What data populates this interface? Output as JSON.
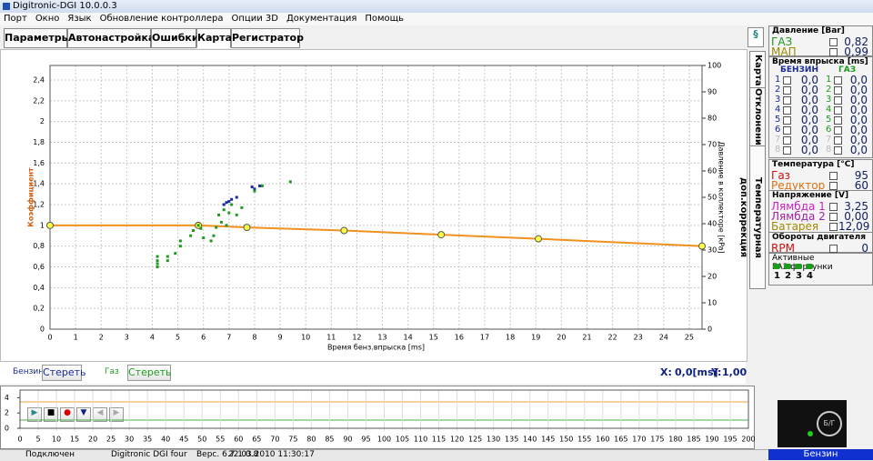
{
  "window": {
    "title": "Digitronic-DGI  10.0.0.3"
  },
  "menu": [
    "Порт",
    "Окно",
    "Язык",
    "Обновление контроллера",
    "Опции 3D",
    "Документация",
    "Помощь"
  ],
  "tabs": [
    "Параметры",
    "Автонастройка",
    "Ошибки",
    "Карта",
    "Регистратор"
  ],
  "side_tabs": [
    "Карта",
    "Отклонения",
    "Температурная доп.коррекция"
  ],
  "chart_data": {
    "type": "scatter",
    "xlabel": "Время бенз.впрыска [ms]",
    "ylabel": "Коэффициент",
    "y2label": "Давление в коллекторе [кPa]",
    "xlim": [
      0,
      25.5
    ],
    "ylim": [
      0,
      2.54
    ],
    "y2lim": [
      0,
      100
    ],
    "xticks": [
      0,
      1,
      2,
      3,
      4,
      5,
      6,
      7,
      8,
      9,
      10,
      11,
      12,
      13,
      14,
      15,
      16,
      17,
      18,
      19,
      20,
      21,
      22,
      23,
      24,
      25
    ],
    "yticks": [
      0,
      {
        "value": 0.2,
        "label": "0,2"
      },
      {
        "value": 0.4,
        "label": "0,4"
      },
      {
        "value": 0.6,
        "label": "0,6"
      },
      {
        "value": 0.8,
        "label": "0,8"
      },
      {
        "value": 1,
        "label": "1"
      },
      {
        "value": 1.2,
        "label": "1,2"
      },
      {
        "value": 1.4,
        "label": "1,4"
      },
      {
        "value": 1.6,
        "label": "1,6"
      },
      {
        "value": 1.8,
        "label": "1,8"
      },
      {
        "value": 2,
        "label": "2"
      },
      {
        "value": 2.2,
        "label": "2,2"
      },
      {
        "value": 2.4,
        "label": "2,4"
      }
    ],
    "y2ticks": [
      0,
      10,
      20,
      30,
      40,
      50,
      60,
      70,
      80,
      90,
      100
    ],
    "grid": true,
    "map": {
      "color": "#f0901e",
      "x": [
        0,
        5.8,
        7.7,
        11.5,
        15.3,
        19.1,
        25.5
      ],
      "y": [
        1.0,
        1.0,
        0.98,
        0.95,
        0.91,
        0.87,
        0.8
      ]
    },
    "series": [
      {
        "name": "Бензин",
        "color": "#1a2a9a",
        "x": [
          6.8,
          6.9,
          7.0,
          7.1,
          7.3,
          7.9,
          8.0,
          8.2
        ],
        "values": [
          1.2,
          1.22,
          1.23,
          1.25,
          1.27,
          1.37,
          1.35,
          1.38
        ]
      },
      {
        "name": "Газ",
        "color": "#1e9a1e",
        "x": [
          4.2,
          4.2,
          4.2,
          4.2,
          4.6,
          4.6,
          4.9,
          5.1,
          5.1,
          5.5,
          5.6,
          5.8,
          5.9,
          6.0,
          6.3,
          6.4,
          6.5,
          6.6,
          6.7,
          6.8,
          6.9,
          7.0,
          7.1,
          7.3,
          7.5,
          8.0,
          8.3,
          9.4
        ],
        "values": [
          0.6,
          0.63,
          0.66,
          0.7,
          0.66,
          0.7,
          0.73,
          0.8,
          0.85,
          0.9,
          0.95,
          1.0,
          0.97,
          0.88,
          0.85,
          0.9,
          0.98,
          1.1,
          1.03,
          1.15,
          1.0,
          1.12,
          1.2,
          1.1,
          1.17,
          1.33,
          1.38,
          1.42
        ]
      }
    ]
  },
  "erase_button": "Стереть",
  "cursor": {
    "x_label": "X:",
    "x_value": "0,0[ms]",
    "y_label": "Y:",
    "y_value": "1,00"
  },
  "strip_chart": {
    "xlim": [
      0,
      200
    ],
    "ylim": [
      0,
      5
    ],
    "yticks": [
      0,
      2,
      4
    ],
    "xticks": [
      0,
      5,
      10,
      15,
      20,
      25,
      30,
      35,
      40,
      45,
      50,
      55,
      60,
      65,
      70,
      75,
      80,
      85,
      90,
      95,
      100,
      105,
      110,
      115,
      120,
      125,
      130,
      135,
      140,
      145,
      150,
      155,
      160,
      165,
      170,
      175,
      180,
      185,
      190,
      195,
      200
    ]
  },
  "panel": {
    "pressure": {
      "title": "Давление [Bar]",
      "rows": [
        {
          "label": "ГАЗ",
          "value": "0,82",
          "color": "#1e9a1e"
        },
        {
          "label": "МАП",
          "value": "0,99",
          "color": "#a08a00"
        }
      ]
    },
    "injection": {
      "title": "Время впрыска [ms]",
      "petrol": "БЕНЗИН",
      "gas": "ГАЗ",
      "rows": [
        {
          "n": "1",
          "petrol": "0,0",
          "gas": "0,0"
        },
        {
          "n": "2",
          "petrol": "0,0",
          "gas": "0,0"
        },
        {
          "n": "3",
          "petrol": "0,0",
          "gas": "0,0"
        },
        {
          "n": "4",
          "petrol": "0,0",
          "gas": "0,0"
        },
        {
          "n": "5",
          "petrol": "0,0",
          "gas": "0,0"
        },
        {
          "n": "6",
          "petrol": "0,0",
          "gas": "0,0"
        },
        {
          "n": "7",
          "petrol": "0,0",
          "gas": "0,0"
        },
        {
          "n": "8",
          "petrol": "0,0",
          "gas": "0,0"
        }
      ]
    },
    "temperature": {
      "title": "Температура [°C]",
      "rows": [
        {
          "label": "Газ",
          "value": "95",
          "color": "#d01010"
        },
        {
          "label": "Редуктор",
          "value": "60",
          "color": "#e07010"
        }
      ]
    },
    "voltage": {
      "title": "Напряжение [V]",
      "rows": [
        {
          "label": "Лямбда 1",
          "value": "3,25",
          "color": "#d020c0"
        },
        {
          "label": "Лямбда 2",
          "value": "0,00",
          "color": "#a020a0"
        },
        {
          "label": "Батарея",
          "value": "12,09",
          "color": "#a08a00"
        }
      ]
    },
    "rpm": {
      "title": "Обороты двигателя",
      "rows": [
        {
          "label": "RPM",
          "value": "0",
          "color": "#d01010"
        }
      ]
    },
    "injectors": {
      "title": "Активные ГАЗ.форсунки",
      "labels": [
        "1",
        "2",
        "3",
        "4"
      ]
    }
  },
  "status": {
    "state": "Подключен",
    "device": "Digitronic DGI four",
    "version": "Верс. 6.7  1.0.8",
    "date": "22.03.2010 11:30:17",
    "fuel": "Бензин"
  }
}
